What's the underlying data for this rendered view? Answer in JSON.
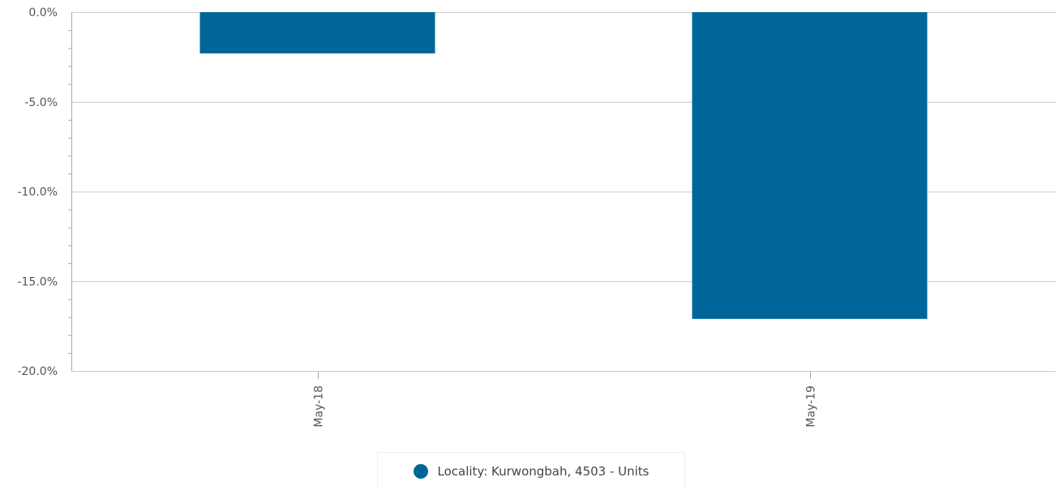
{
  "colors": {
    "bar": "#006699",
    "grid": "#cccccc",
    "axis": "#aaaaaa",
    "text": "#555555"
  },
  "chart_data": {
    "type": "bar",
    "categories": [
      "May-18",
      "May-19"
    ],
    "series": [
      {
        "name": "Locality: Kurwongbah, 4503 - Units",
        "values": [
          -2.3,
          -17.1
        ]
      }
    ],
    "ylim": [
      -20,
      0
    ],
    "yticks": [
      0,
      -5,
      -10,
      -15,
      -20
    ],
    "ytick_labels": [
      "0.0%",
      "-5.0%",
      "-10.0%",
      "-15.0%",
      "-20.0%"
    ],
    "grid": true,
    "legend_position": "bottom-center",
    "xlabel": "",
    "ylabel": ""
  },
  "legend": {
    "label": "Locality: Kurwongbah, 4503 - Units",
    "icon": "circle-marker"
  }
}
